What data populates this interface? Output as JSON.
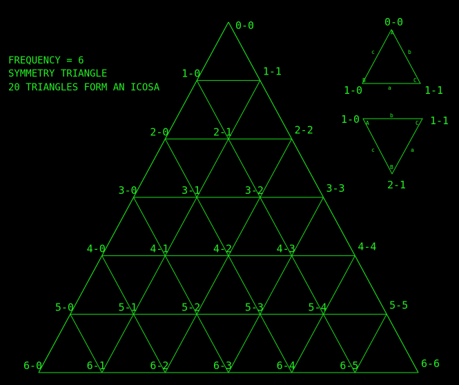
{
  "notes": [
    "FREQUENCY = 6",
    "SYMMETRY TRIANGLE",
    "20 TRIANGLES FORM AN ICOSA"
  ],
  "frequency": 6,
  "main_grid": {
    "labels": [
      [
        "0-0"
      ],
      [
        "1-0",
        "1-1"
      ],
      [
        "2-0",
        "2-1",
        "2-2"
      ],
      [
        "3-0",
        "3-1",
        "3-2",
        "3-3"
      ],
      [
        "4-0",
        "4-1",
        "4-2",
        "4-3",
        "4-4"
      ],
      [
        "5-0",
        "5-1",
        "5-2",
        "5-3",
        "5-4",
        "5-5"
      ],
      [
        "6-0",
        "6-1",
        "6-2",
        "6-3",
        "6-4",
        "6-5",
        "6-6"
      ]
    ]
  },
  "legend_up": {
    "vertex_labels": [
      "0-0",
      "1-0",
      "1-1"
    ],
    "corner_letters": [
      "A",
      "B",
      "C"
    ],
    "edge_letters": [
      "c",
      "b",
      "a"
    ]
  },
  "legend_down": {
    "vertex_labels": [
      "1-0",
      "1-1",
      "2-1"
    ],
    "corner_letters": [
      "A",
      "C",
      "B"
    ],
    "edge_letters": [
      "b",
      "c",
      "a"
    ]
  },
  "colors": {
    "line": "#18e018",
    "text": "#22ee22",
    "background": "#000000"
  }
}
